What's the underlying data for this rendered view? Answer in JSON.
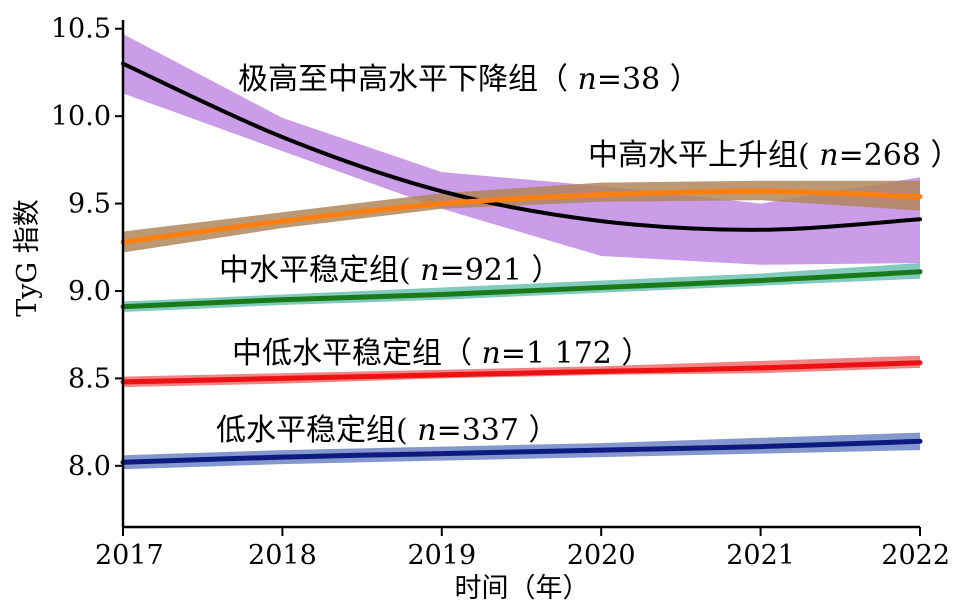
{
  "chart_data": {
    "type": "line",
    "xlabel": "时间（年）",
    "ylabel": "TyG 指数",
    "x": [
      2017,
      2018,
      2019,
      2020,
      2021,
      2022
    ],
    "xlim": [
      2017,
      2022
    ],
    "ylim": [
      7.65,
      10.55
    ],
    "yticks": [
      8.0,
      8.5,
      9.0,
      9.5,
      10.0,
      10.5
    ],
    "yticklabels": [
      "8.0",
      "8.5",
      "9.0",
      "9.5",
      "10.0",
      "10.5"
    ],
    "xticklabels": [
      "2017",
      "2018",
      "2019",
      "2020",
      "2021",
      "2022"
    ],
    "grid": false,
    "series": [
      {
        "name": "极高至中高水平下降组（n=38）",
        "label_prefix": "极高至中高水平下降组（ ",
        "label_n": "n",
        "label_suffix": "=38 ）",
        "values": [
          10.3,
          9.88,
          9.57,
          9.4,
          9.35,
          9.41
        ],
        "lower": [
          10.13,
          9.8,
          9.47,
          9.2,
          9.15,
          9.16
        ],
        "upper": [
          10.47,
          9.99,
          9.68,
          9.6,
          9.5,
          9.65
        ],
        "line_color": "#000000",
        "band_color": "#b97be0"
      },
      {
        "name": "中高水平上升组(n=268）",
        "label_prefix": "中高水平上升组( ",
        "label_n": "n",
        "label_suffix": "=268 ）",
        "values": [
          9.28,
          9.4,
          9.5,
          9.55,
          9.57,
          9.54
        ],
        "lower": [
          9.22,
          9.36,
          9.47,
          9.51,
          9.52,
          9.46
        ],
        "upper": [
          9.34,
          9.45,
          9.56,
          9.62,
          9.63,
          9.63
        ],
        "line_color": "#ff7f0e",
        "band_color": "#b0865a"
      },
      {
        "name": "中水平稳定组(n=921）",
        "label_prefix": "中水平稳定组( ",
        "label_n": "n",
        "label_suffix": "=921 ）",
        "values": [
          8.91,
          8.95,
          8.98,
          9.02,
          9.06,
          9.11
        ],
        "lower": [
          8.88,
          8.92,
          8.95,
          8.99,
          9.03,
          9.07
        ],
        "upper": [
          8.94,
          8.98,
          9.02,
          9.06,
          9.1,
          9.16
        ],
        "line_color": "#1a7a1a",
        "band_color": "#6fc2b4"
      },
      {
        "name": "中低水平稳定组（n=1 172）",
        "label_prefix": "中低水平稳定组（ ",
        "label_n": "n",
        "label_suffix": "=1 172 ）",
        "values": [
          8.48,
          8.5,
          8.52,
          8.54,
          8.56,
          8.59
        ],
        "lower": [
          8.45,
          8.47,
          8.5,
          8.52,
          8.53,
          8.56
        ],
        "upper": [
          8.51,
          8.53,
          8.55,
          8.57,
          8.6,
          8.63
        ],
        "line_color": "#ee1111",
        "band_color": "#ef7070"
      },
      {
        "name": "低水平稳定组(n=337）",
        "label_prefix": "低水平稳定组( ",
        "label_n": "n",
        "label_suffix": "=337 ）",
        "values": [
          8.02,
          8.05,
          8.07,
          8.09,
          8.11,
          8.14
        ],
        "lower": [
          7.98,
          8.01,
          8.03,
          8.05,
          8.07,
          8.09
        ],
        "upper": [
          8.06,
          8.09,
          8.11,
          8.13,
          8.16,
          8.19
        ],
        "line_color": "#0d1a80",
        "band_color": "#6f86c6"
      }
    ]
  }
}
